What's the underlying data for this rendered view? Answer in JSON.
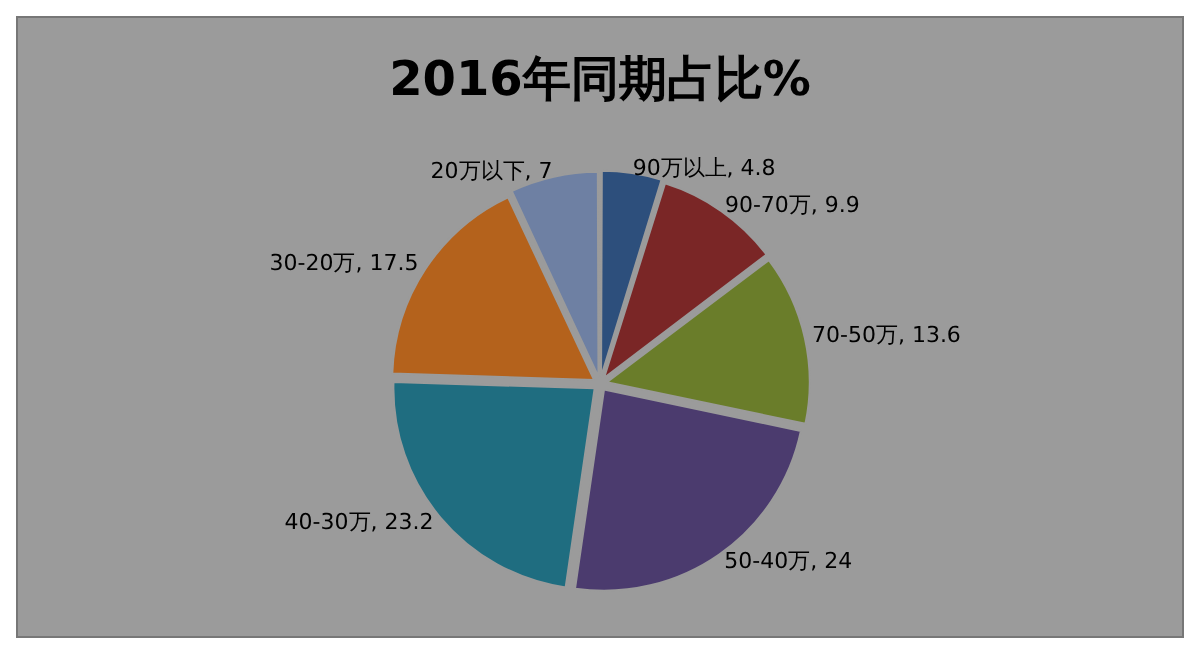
{
  "chart_data": {
    "type": "pie",
    "title": "2016年同期占比%",
    "categories": [
      "90万以上",
      "90-70万",
      "70-50万",
      "50-40万",
      "40-30万",
      "30-20万",
      "20万以下"
    ],
    "values": [
      4.8,
      9.9,
      13.6,
      24,
      23.2,
      17.5,
      7
    ],
    "value_labels": [
      ", 4.8",
      ", 9.9",
      ", 13.6",
      ", 24",
      ", 23.2",
      ", 17.5",
      ", 7"
    ],
    "colors": [
      "#2d4f7c",
      "#7a2626",
      "#6a7d2a",
      "#4b3b6e",
      "#1f6d80",
      "#b4621c",
      "#6e80a3"
    ],
    "legend": false
  }
}
